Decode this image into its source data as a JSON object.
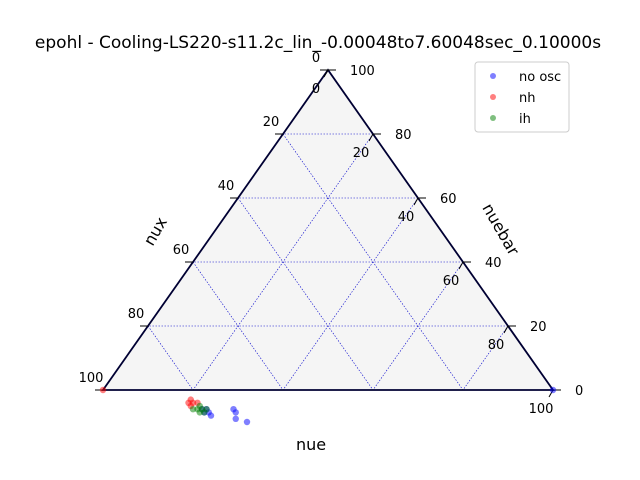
{
  "chart_data": {
    "type": "scatter",
    "title": "epohl - Cooling-LS220-s11.2c_lin_-0.00048to7.60048sec_0.10000s",
    "axes": {
      "bottom": {
        "label": "nue",
        "ticks": [
          0,
          20,
          40,
          60,
          80,
          100
        ]
      },
      "left": {
        "label": "nux",
        "ticks": [
          0,
          20,
          40,
          60,
          80,
          100
        ]
      },
      "right": {
        "label": "nuebar",
        "ticks": [
          0,
          20,
          40,
          60,
          80,
          100
        ]
      }
    },
    "grid": true,
    "legend_position": "top-right",
    "series": [
      {
        "name": "no osc",
        "color": "#0000ff",
        "points": [
          {
            "nue": 32,
            "nux": 74,
            "nuebar": -6
          },
          {
            "nue": 33,
            "nux": 74,
            "nuebar": -7
          },
          {
            "nue": 34,
            "nux": 75,
            "nuebar": -9
          },
          {
            "nue": 37,
            "nux": 73,
            "nuebar": -10
          },
          {
            "nue": 26,
            "nux": 81,
            "nuebar": -7
          },
          {
            "nue": 27,
            "nux": 80,
            "nuebar": -7
          },
          {
            "nue": 26,
            "nux": 80,
            "nuebar": -6
          },
          {
            "nue": 25,
            "nux": 81,
            "nuebar": -6
          },
          {
            "nue": 28,
            "nux": 80,
            "nuebar": -8
          },
          {
            "nue": 100,
            "nux": 0,
            "nuebar": 0
          }
        ]
      },
      {
        "name": "nh",
        "color": "#ff0000",
        "points": [
          {
            "nue": 21,
            "nux": 82,
            "nuebar": -3
          },
          {
            "nue": 22,
            "nux": 82,
            "nuebar": -4
          },
          {
            "nue": 23,
            "nux": 81,
            "nuebar": -4
          },
          {
            "nue": 21,
            "nux": 83,
            "nuebar": -4
          },
          {
            "nue": 22,
            "nux": 83,
            "nuebar": -5
          },
          {
            "nue": 0,
            "nux": 100,
            "nuebar": 0
          }
        ]
      },
      {
        "name": "ih",
        "color": "#008000",
        "points": [
          {
            "nue": 24,
            "nux": 81,
            "nuebar": -5
          },
          {
            "nue": 25,
            "nux": 81,
            "nuebar": -6
          },
          {
            "nue": 26,
            "nux": 81,
            "nuebar": -7
          },
          {
            "nue": 24,
            "nux": 82,
            "nuebar": -6
          },
          {
            "nue": 25,
            "nux": 82,
            "nuebar": -7
          },
          {
            "nue": 23,
            "nux": 83,
            "nuebar": -6
          },
          {
            "nue": 26,
            "nux": 80,
            "nuebar": -6
          },
          {
            "nue": 31,
            "nux": 100,
            "nuebar": -31
          }
        ]
      }
    ]
  }
}
